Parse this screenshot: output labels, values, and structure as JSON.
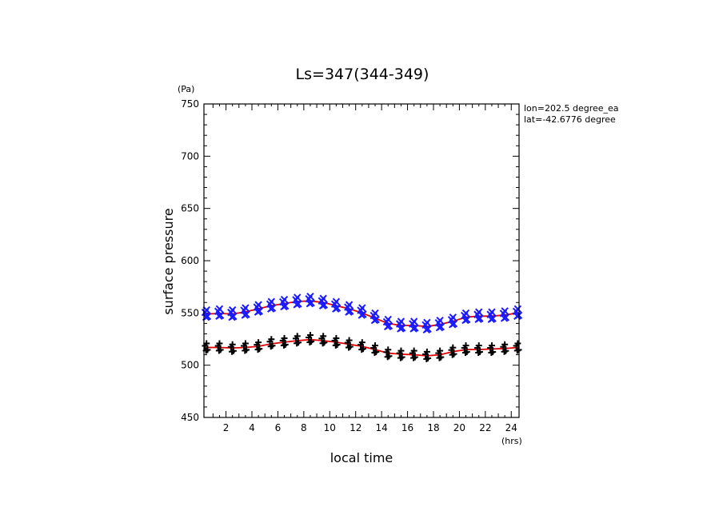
{
  "chart_data": {
    "type": "scatter",
    "title": "Ls=347(344-349)",
    "xlabel": "local time",
    "ylabel": "surface pressure",
    "x_unit": "(hrs)",
    "y_unit": "(Pa)",
    "xlim": [
      0.3,
      24.6
    ],
    "ylim": [
      450,
      750
    ],
    "x_ticks": [
      "2",
      "4",
      "6",
      "8",
      "10",
      "12",
      "14",
      "16",
      "18",
      "20",
      "22",
      "24"
    ],
    "y_ticks": [
      "450",
      "500",
      "550",
      "600",
      "650",
      "700",
      "750"
    ],
    "annotations": [
      "lon=202.5 degree_ea",
      "lat=-42.6776 degree"
    ],
    "x": [
      0.5,
      1.5,
      2.5,
      3.5,
      4.5,
      5.5,
      6.5,
      7.5,
      8.5,
      9.5,
      10.5,
      11.5,
      12.5,
      13.5,
      14.5,
      15.5,
      16.5,
      17.5,
      18.5,
      19.5,
      20.5,
      21.5,
      22.5,
      23.5,
      24.5
    ],
    "series": [
      {
        "marker": "x",
        "color": "#1a1aff",
        "values": [
          549,
          550,
          549,
          551,
          554,
          557,
          559,
          561,
          562,
          560,
          557,
          554,
          551,
          546,
          540,
          538,
          538,
          537,
          539,
          542,
          546,
          547,
          547,
          548,
          550
        ]
      },
      {
        "marker": "+",
        "color": "#000000",
        "values": [
          517,
          517,
          516,
          517,
          518,
          521,
          522,
          524,
          525,
          524,
          522,
          520,
          518,
          515,
          511,
          510,
          510,
          509,
          510,
          513,
          515,
          515,
          515,
          516,
          517
        ]
      }
    ],
    "fits": [
      {
        "color": "#e00000",
        "values": [
          549,
          549.5,
          549,
          551,
          554,
          557,
          559,
          561,
          561.5,
          560,
          557,
          554,
          550,
          545,
          540,
          538,
          538,
          537,
          539,
          542,
          546,
          547,
          547,
          548,
          550
        ]
      },
      {
        "color": "#e00000",
        "values": [
          517,
          517,
          516.5,
          517,
          518,
          520.5,
          522,
          523.5,
          524.5,
          523.5,
          522,
          520,
          518,
          515,
          511.5,
          510.5,
          510,
          509,
          510,
          513,
          515,
          515,
          515.5,
          516,
          517
        ]
      }
    ],
    "grid": false,
    "legend": false
  }
}
